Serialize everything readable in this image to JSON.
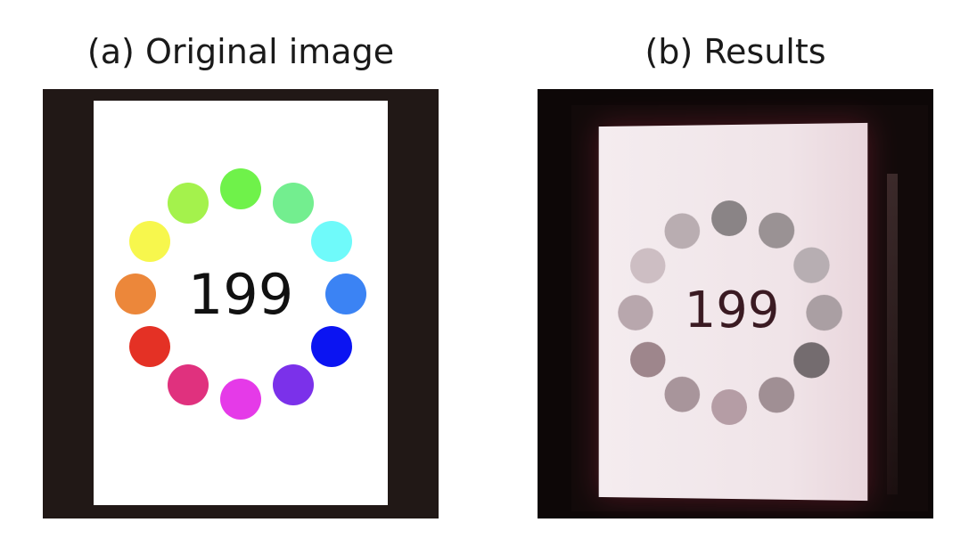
{
  "panels": {
    "a": {
      "title": "(a) Original image",
      "number": "199"
    },
    "b": {
      "title": "(b) Results",
      "number": "199"
    }
  },
  "dots_a_colors": [
    "#6ff24a",
    "#73ee8f",
    "#6ffafa",
    "#3b83f4",
    "#0b14f2",
    "#7b31ea",
    "#e53ae8",
    "#e0317e",
    "#e43125",
    "#ec873a",
    "#f7f74d",
    "#a4f24c"
  ],
  "dots_b_colors": [
    "#8a8486",
    "#9a9294",
    "#b7aeb2",
    "#aa9fa3",
    "#746c6f",
    "#a08f94",
    "#b59da5",
    "#a8959b",
    "#9e868c",
    "#b8a7ad",
    "#cdbec3",
    "#b9adb1"
  ]
}
